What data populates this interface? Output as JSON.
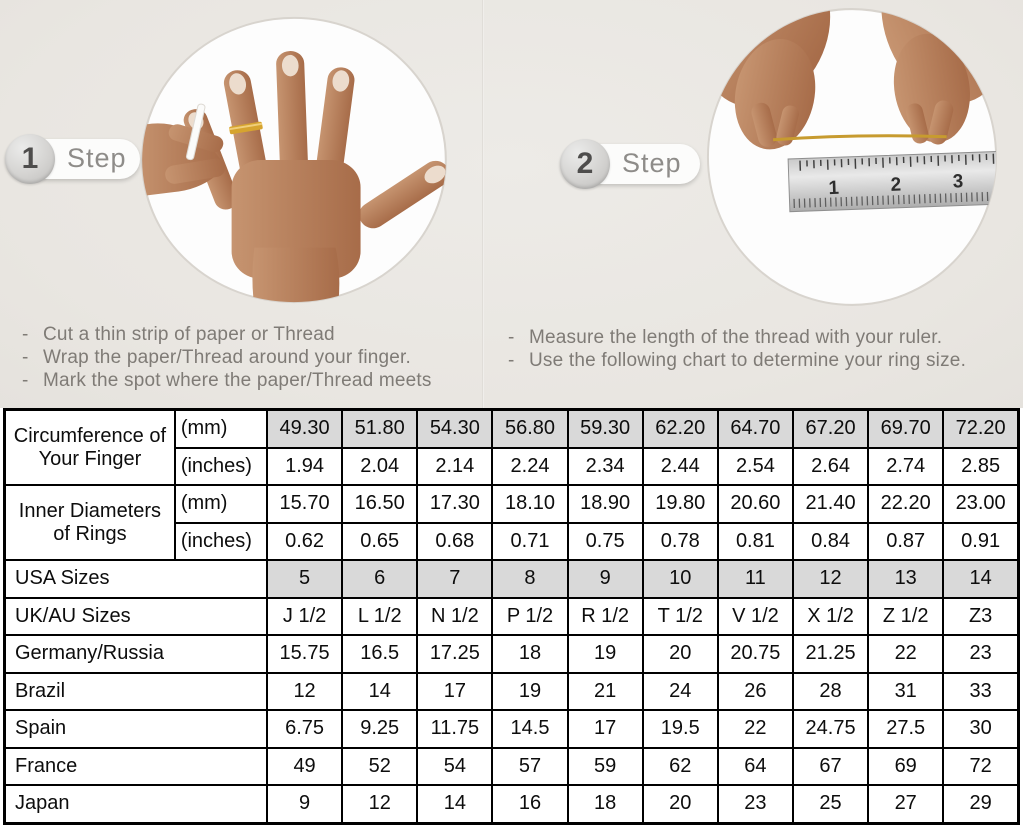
{
  "colors": {
    "top_background": "#eae7e2",
    "shaded_cell": "#d9d9d9",
    "table_border": "#000000",
    "muted_text": "#7f7b76",
    "gold_thread": "#c79b2f"
  },
  "steps": [
    {
      "number": "1",
      "label": "Step",
      "bullet_prefix": "-",
      "bullets": [
        "Cut a thin strip of paper or Thread",
        "Wrap the paper/Thread around your finger.",
        "Mark the spot where the paper/Thread meets"
      ]
    },
    {
      "number": "2",
      "label": "Step",
      "bullet_prefix": "-",
      "bullets": [
        "Measure the length of the thread with your ruler.",
        "Use the following chart to determine your ring size."
      ]
    }
  ],
  "photos": {
    "step1_name": "hand-with-ring-photo",
    "step2_name": "measuring-thread-with-ruler-photo",
    "ruler_numbers": [
      "1",
      "2",
      "3"
    ]
  },
  "table": {
    "groups": [
      {
        "label": "Circumference of Your Finger",
        "rows": [
          {
            "unit": "(mm)",
            "shaded": true,
            "values": [
              "49.30",
              "51.80",
              "54.30",
              "56.80",
              "59.30",
              "62.20",
              "64.70",
              "67.20",
              "69.70",
              "72.20"
            ]
          },
          {
            "unit": "(inches)",
            "shaded": false,
            "values": [
              "1.94",
              "2.04",
              "2.14",
              "2.24",
              "2.34",
              "2.44",
              "2.54",
              "2.64",
              "2.74",
              "2.85"
            ]
          }
        ]
      },
      {
        "label": "Inner Diameters of Rings",
        "rows": [
          {
            "unit": "(mm)",
            "shaded": false,
            "values": [
              "15.70",
              "16.50",
              "17.30",
              "18.10",
              "18.90",
              "19.80",
              "20.60",
              "21.40",
              "22.20",
              "23.00"
            ]
          },
          {
            "unit": "(inches)",
            "shaded": false,
            "values": [
              "0.62",
              "0.65",
              "0.68",
              "0.71",
              "0.75",
              "0.78",
              "0.81",
              "0.84",
              "0.87",
              "0.91"
            ]
          }
        ]
      }
    ],
    "size_rows": [
      {
        "label": "USA Sizes",
        "shaded": true,
        "values": [
          "5",
          "6",
          "7",
          "8",
          "9",
          "10",
          "11",
          "12",
          "13",
          "14"
        ]
      },
      {
        "label": "UK/AU Sizes",
        "shaded": false,
        "values": [
          "J 1/2",
          "L 1/2",
          "N 1/2",
          "P 1/2",
          "R 1/2",
          "T 1/2",
          "V 1/2",
          "X 1/2",
          "Z 1/2",
          "Z3"
        ]
      },
      {
        "label": "Germany/Russia",
        "shaded": false,
        "values": [
          "15.75",
          "16.5",
          "17.25",
          "18",
          "19",
          "20",
          "20.75",
          "21.25",
          "22",
          "23"
        ]
      },
      {
        "label": "Brazil",
        "shaded": false,
        "values": [
          "12",
          "14",
          "17",
          "19",
          "21",
          "24",
          "26",
          "28",
          "31",
          "33"
        ]
      },
      {
        "label": "Spain",
        "shaded": false,
        "values": [
          "6.75",
          "9.25",
          "11.75",
          "14.5",
          "17",
          "19.5",
          "22",
          "24.75",
          "27.5",
          "30"
        ]
      },
      {
        "label": "France",
        "shaded": false,
        "values": [
          "49",
          "52",
          "54",
          "57",
          "59",
          "62",
          "64",
          "67",
          "69",
          "72"
        ]
      },
      {
        "label": "Japan",
        "shaded": false,
        "values": [
          "9",
          "12",
          "14",
          "16",
          "18",
          "20",
          "23",
          "25",
          "27",
          "29"
        ]
      }
    ]
  }
}
